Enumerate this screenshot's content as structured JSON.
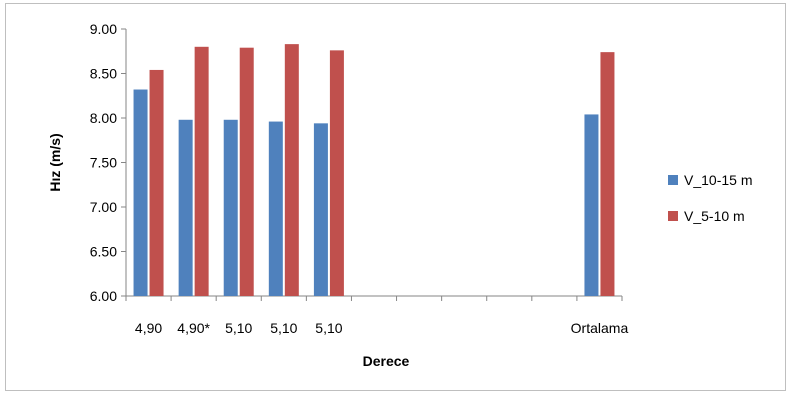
{
  "chart_data": {
    "type": "bar",
    "title": "",
    "xlabel": "Derece",
    "ylabel": "Hız (m/s)",
    "ylim": [
      6.0,
      9.0
    ],
    "ytick_step": 0.5,
    "ytick_labels": [
      "6.00",
      "6.50",
      "7.00",
      "7.50",
      "8.00",
      "8.50",
      "9.00"
    ],
    "categories": [
      "4,90",
      "4,90*",
      "5,10",
      "5,10",
      "5,10",
      "",
      "",
      "",
      "",
      "",
      "Ortalama"
    ],
    "series": [
      {
        "name": "V_10-15 m",
        "color": "#4f81bd",
        "values": [
          8.32,
          7.98,
          7.98,
          7.96,
          7.94,
          null,
          null,
          null,
          null,
          null,
          8.04
        ]
      },
      {
        "name": "V_5-10 m",
        "color": "#c0504d",
        "values": [
          8.54,
          8.8,
          8.79,
          8.83,
          8.76,
          null,
          null,
          null,
          null,
          null,
          8.74
        ]
      }
    ],
    "grid": false,
    "legend_position": "right"
  }
}
